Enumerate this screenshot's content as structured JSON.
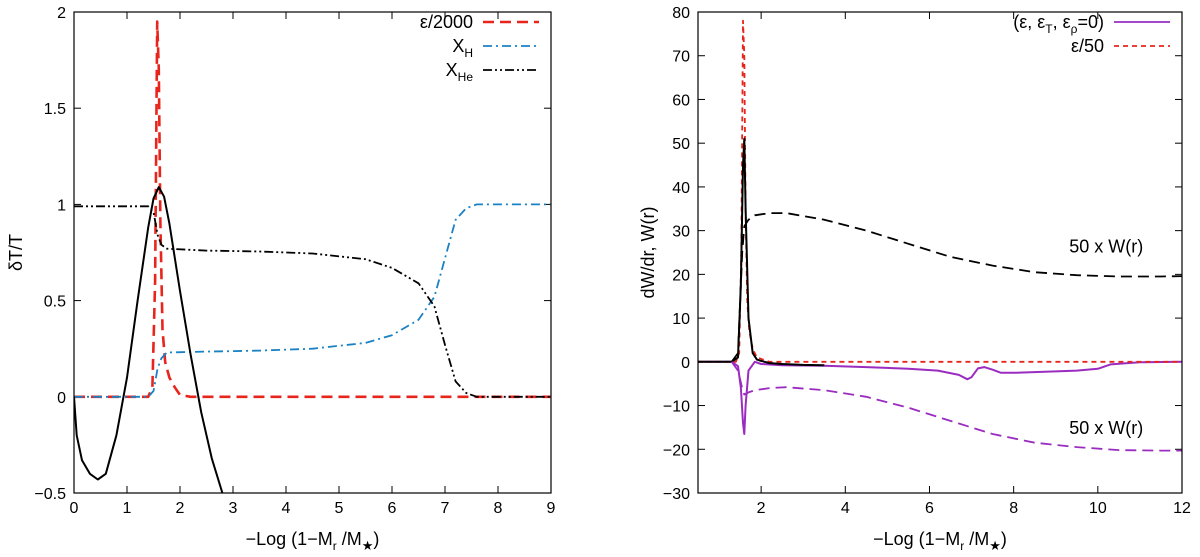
{
  "chart_data": [
    {
      "type": "line",
      "title": "",
      "xlabel_parts": {
        "prefix": "−Log (1−M",
        "sub1": "r",
        "mid": " /M",
        "sub2": "★",
        "suffix": ")"
      },
      "ylabel": "δT/T",
      "xlim": [
        0,
        9
      ],
      "ylim": [
        -0.5,
        2
      ],
      "xticks": [
        0,
        1,
        2,
        3,
        4,
        5,
        6,
        7,
        8,
        9
      ],
      "xtick_labels": [
        "0",
        "1",
        "2",
        "3",
        "4",
        "5",
        "6",
        "7",
        "8",
        "9"
      ],
      "yticks": [
        -0.5,
        0,
        0.5,
        1,
        1.5,
        2
      ],
      "ytick_labels": [
        "−0.5",
        "0",
        "0.5",
        "1",
        "1.5",
        "2"
      ],
      "legend_position": "top-right",
      "series": [
        {
          "name": "ε/2000",
          "color": "#e8251c",
          "style": "dashed",
          "x": [
            0,
            1.4,
            1.48,
            1.53,
            1.57,
            1.6,
            1.63,
            1.67,
            1.72,
            1.8,
            1.9,
            2.0,
            2.2,
            9
          ],
          "y": [
            0,
            0,
            0.05,
            0.6,
            1.95,
            1.7,
            0.9,
            0.35,
            0.18,
            0.1,
            0.05,
            0.01,
            0,
            0
          ]
        },
        {
          "name": "X_H",
          "legend_text": "X",
          "legend_sub": "H",
          "color": "#1a82c4",
          "style": "dashdot",
          "x": [
            0,
            1.4,
            1.5,
            1.58,
            1.65,
            1.75,
            2.5,
            3.5,
            4.5,
            5.5,
            6.0,
            6.5,
            6.8,
            7.0,
            7.2,
            7.4,
            7.6,
            8.0,
            9
          ],
          "y": [
            0,
            0,
            0.03,
            0.15,
            0.2,
            0.23,
            0.235,
            0.24,
            0.25,
            0.28,
            0.32,
            0.4,
            0.52,
            0.72,
            0.92,
            0.98,
            1.0,
            1.0,
            1.0
          ]
        },
        {
          "name": "X_He",
          "legend_text": "X",
          "legend_sub": "He",
          "color": "#000000",
          "style": "dashdotdot",
          "x": [
            0,
            1.4,
            1.5,
            1.58,
            1.65,
            1.75,
            2.5,
            3.5,
            4.5,
            5.5,
            6.0,
            6.5,
            6.8,
            7.0,
            7.2,
            7.4,
            7.6,
            8.0,
            9
          ],
          "y": [
            0.99,
            0.99,
            0.96,
            0.84,
            0.79,
            0.77,
            0.76,
            0.755,
            0.745,
            0.715,
            0.67,
            0.59,
            0.47,
            0.27,
            0.08,
            0.02,
            0,
            0,
            0
          ]
        },
        {
          "name": "δT/T",
          "color": "#000000",
          "style": "solid",
          "in_legend": false,
          "x": [
            0,
            0.05,
            0.15,
            0.3,
            0.45,
            0.6,
            0.8,
            1.0,
            1.2,
            1.4,
            1.5,
            1.6,
            1.7,
            1.8,
            2.0,
            2.2,
            2.4,
            2.6,
            2.8
          ],
          "y": [
            0,
            -0.2,
            -0.33,
            -0.4,
            -0.43,
            -0.4,
            -0.2,
            0.1,
            0.5,
            0.88,
            1.03,
            1.09,
            1.04,
            0.9,
            0.55,
            0.22,
            -0.08,
            -0.32,
            -0.5
          ]
        }
      ]
    },
    {
      "type": "line",
      "title": "",
      "xlabel_parts": {
        "prefix": "−Log (1−M",
        "sub1": "r",
        "mid": " /M",
        "sub2": "★",
        "suffix": ")"
      },
      "ylabel": "dW/dr, W(r)",
      "xlim": [
        0.5,
        12
      ],
      "ylim": [
        -30,
        80
      ],
      "xticks": [
        2,
        4,
        6,
        8,
        10,
        12
      ],
      "xtick_labels": [
        "2",
        "4",
        "6",
        "8",
        "10",
        "12"
      ],
      "yticks": [
        -30,
        -20,
        -10,
        0,
        10,
        20,
        30,
        40,
        50,
        60,
        70,
        80
      ],
      "ytick_labels": [
        "−30",
        "−20",
        "−10",
        "0",
        "10",
        "20",
        "30",
        "40",
        "50",
        "60",
        "70",
        "80"
      ],
      "legend_position": "top-right",
      "series": [
        {
          "name": "(ε, ε_T, ε_ρ=0)",
          "color": "#9a2cc0",
          "style": "solid",
          "x": [
            0.5,
            1.3,
            1.45,
            1.52,
            1.57,
            1.6,
            1.63,
            1.7,
            1.85,
            2.0,
            2.5,
            3.5,
            4.5,
            5.5,
            6.2,
            6.7,
            6.9,
            7.0,
            7.15,
            7.3,
            7.5,
            7.7,
            8.0,
            9.0,
            9.5,
            10.0,
            10.3,
            11.0,
            12.0
          ],
          "y": [
            0,
            0,
            -1,
            -6,
            -14,
            -16.5,
            -10,
            -2,
            0,
            -0.5,
            -0.8,
            -0.9,
            -1.2,
            -1.6,
            -2,
            -3,
            -4,
            -3.5,
            -1.5,
            -1.2,
            -1.8,
            -2.5,
            -2.5,
            -2.2,
            -2,
            -1.6,
            -0.6,
            -0.1,
            0
          ]
        },
        {
          "name": "ε/50",
          "color": "#e8251c",
          "style": "dotted",
          "x": [
            0.5,
            1.4,
            1.48,
            1.53,
            1.57,
            1.6,
            1.63,
            1.67,
            1.72,
            1.8,
            1.9,
            2.2,
            12
          ],
          "y": [
            0,
            0,
            2,
            25,
            78,
            70,
            35,
            14,
            7,
            3,
            1,
            0,
            0
          ]
        },
        {
          "name": "dW/dr",
          "color": "#000000",
          "style": "solid",
          "in_legend": false,
          "x": [
            0.5,
            1.3,
            1.45,
            1.52,
            1.57,
            1.6,
            1.63,
            1.7,
            1.8,
            1.9,
            2.0,
            2.2,
            2.5,
            3.0,
            3.5
          ],
          "y": [
            0,
            0,
            1,
            18,
            45,
            51,
            35,
            10,
            2,
            0.5,
            0.2,
            -0.3,
            -0.5,
            -0.7,
            -0.8
          ]
        },
        {
          "name": "50 x W(r)",
          "color": "#000000",
          "style": "dashed",
          "in_legend": false,
          "x": [
            1.3,
            1.45,
            1.55,
            1.6,
            1.7,
            1.85,
            2.2,
            2.6,
            3.5,
            4.5,
            5.5,
            6.5,
            7.5,
            8.5,
            9.5,
            10.5,
            11.5,
            12.0
          ],
          "y": [
            0,
            2,
            25,
            31,
            32.5,
            33.5,
            34,
            34,
            32.5,
            30,
            27,
            24,
            22,
            20.5,
            19.8,
            19.5,
            19.5,
            19.6
          ]
        },
        {
          "name": "50 x W(r)",
          "color": "#9a2cc0",
          "style": "dashed",
          "in_legend": false,
          "x": [
            1.3,
            1.45,
            1.55,
            1.6,
            1.7,
            1.85,
            2.2,
            2.6,
            3.5,
            4.5,
            5.5,
            6.5,
            7.5,
            8.5,
            9.5,
            10.5,
            11.5,
            12.0
          ],
          "y": [
            0,
            -2,
            -6,
            -7.5,
            -7,
            -6.5,
            -6,
            -5.8,
            -6.5,
            -8,
            -10.5,
            -13.5,
            -16.5,
            -18.5,
            -19.5,
            -20.2,
            -20.3,
            -20.3
          ]
        }
      ],
      "annotations": [
        {
          "text": "50 x W(r)",
          "x": 10.2,
          "y": 25,
          "color": "#000000"
        },
        {
          "text": "50 x W(r)",
          "x": 10.2,
          "y": -16.5,
          "color": "#9a2cc0"
        }
      ]
    }
  ]
}
